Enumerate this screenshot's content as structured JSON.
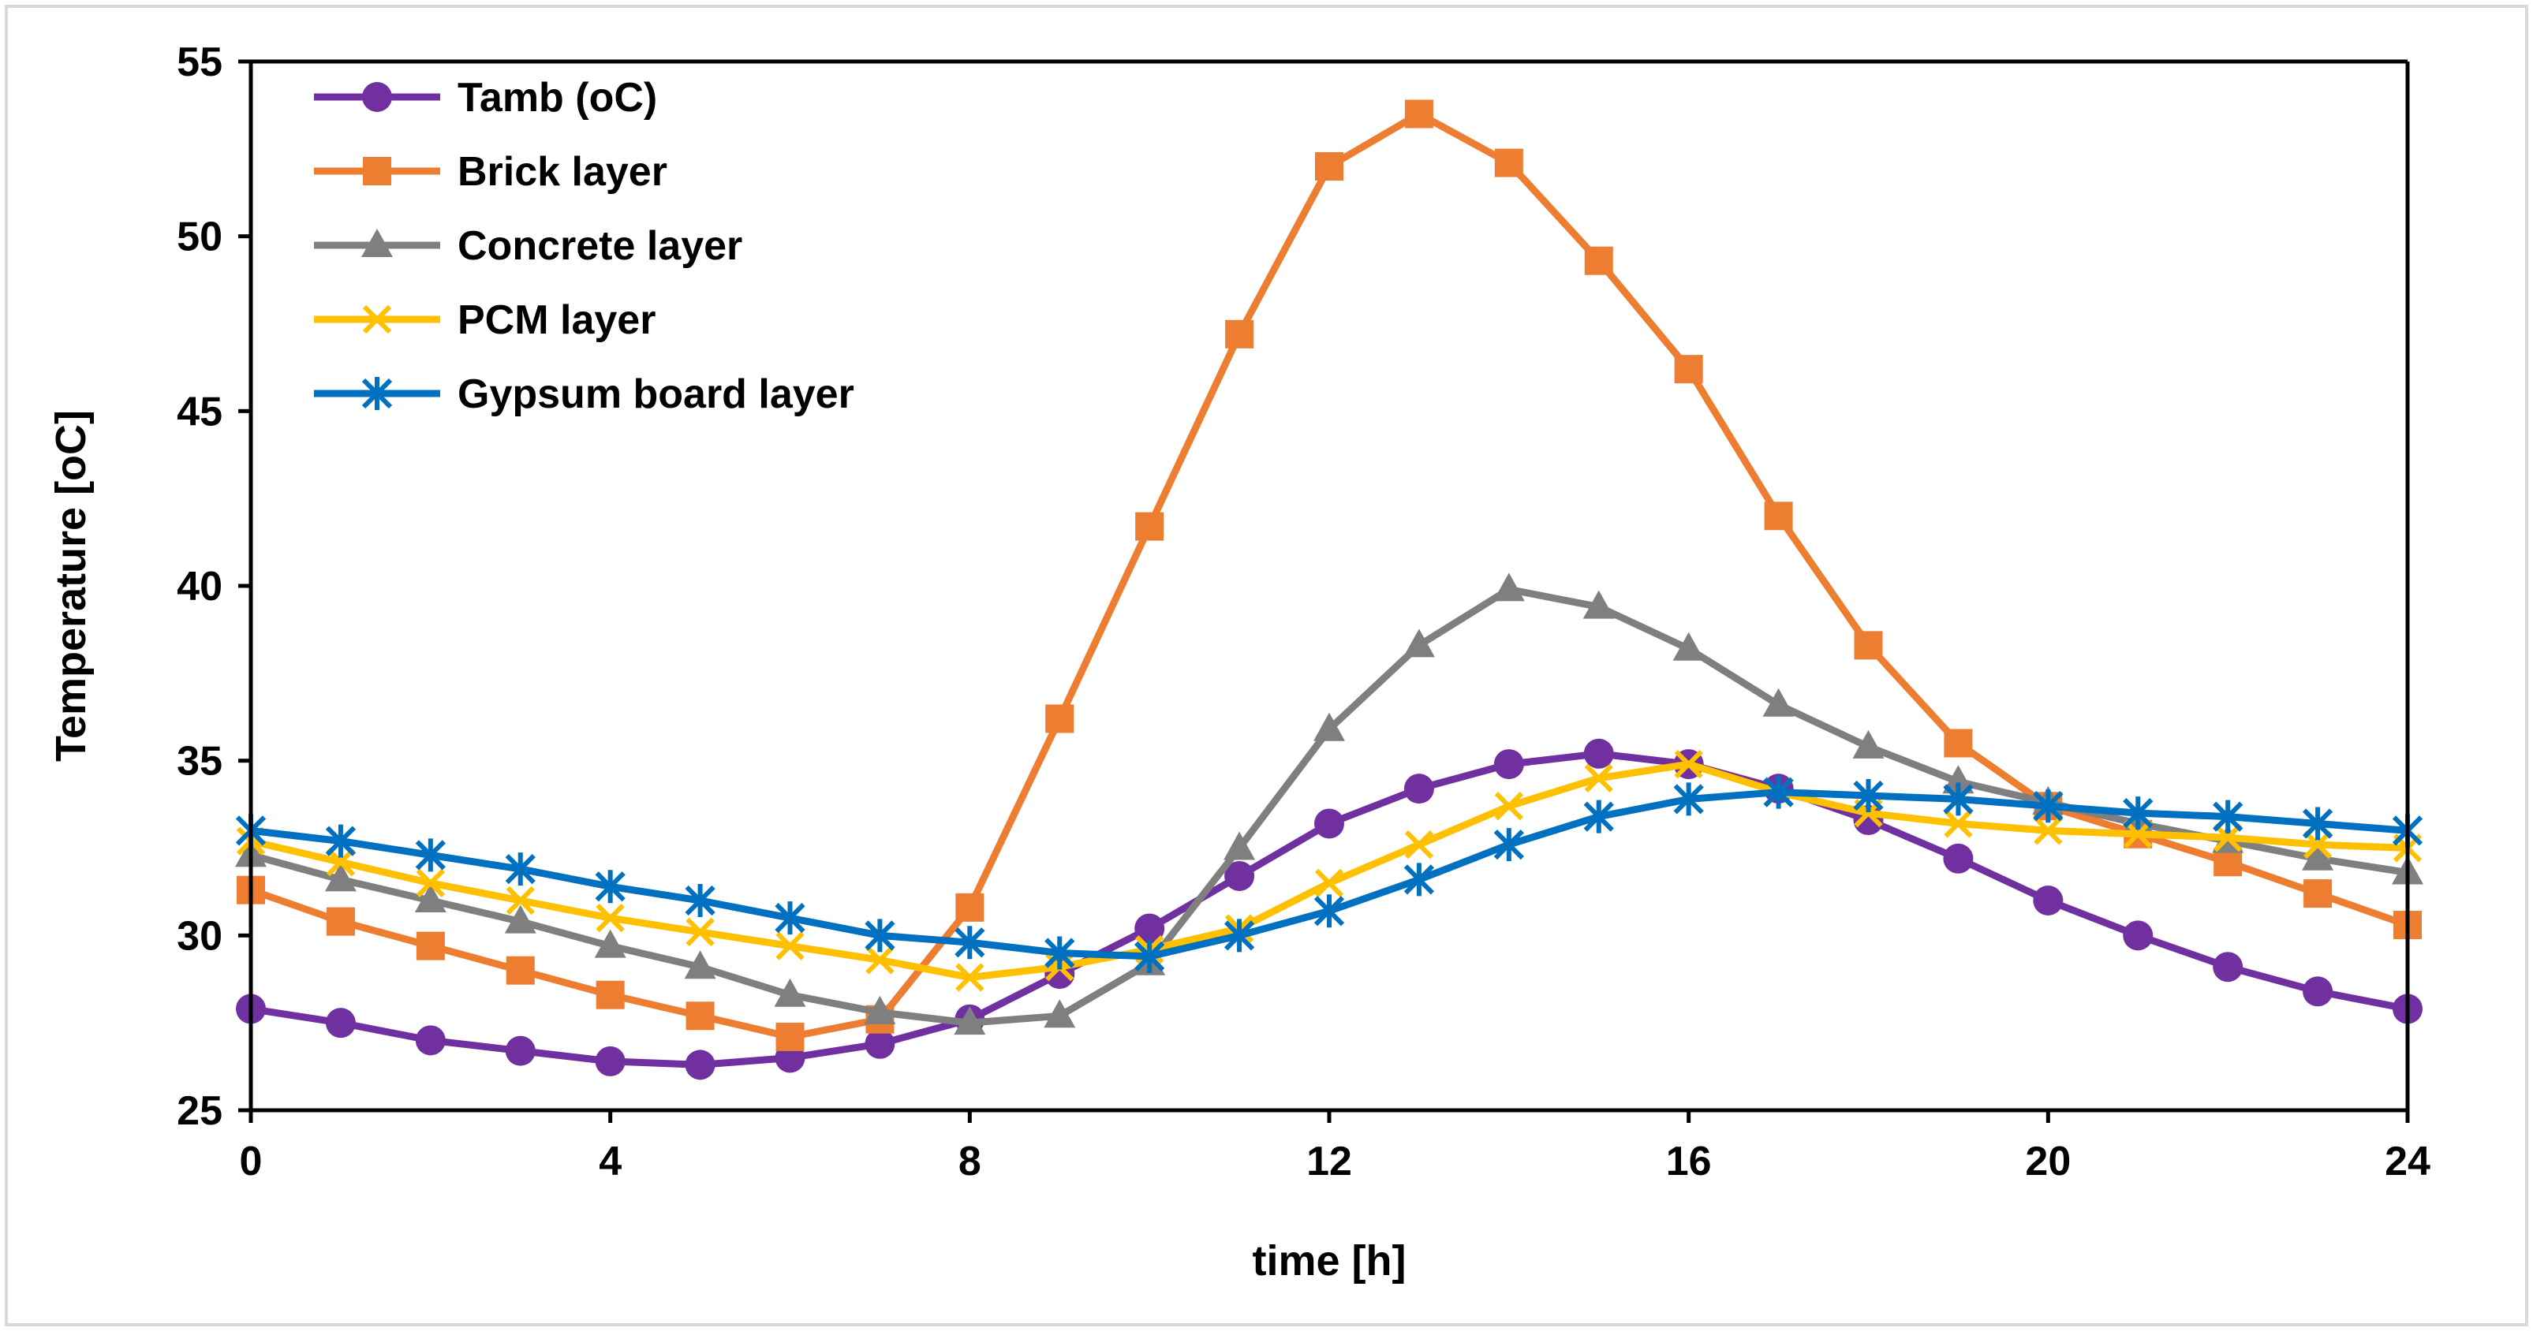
{
  "chart_data": {
    "type": "line",
    "title": "",
    "xlabel": "time [h]",
    "ylabel": "Temperature [oC]",
    "xlim": [
      0,
      24
    ],
    "ylim": [
      25,
      55
    ],
    "xticks": [
      0,
      4,
      8,
      12,
      16,
      20,
      24
    ],
    "yticks": [
      25,
      30,
      35,
      40,
      45,
      50,
      55
    ],
    "grid": false,
    "legend_position": "top-left",
    "x": [
      0,
      1,
      2,
      3,
      4,
      5,
      6,
      7,
      8,
      9,
      10,
      11,
      12,
      13,
      14,
      15,
      16,
      17,
      18,
      19,
      20,
      21,
      22,
      23,
      24
    ],
    "series": [
      {
        "name": "Tamb (oC)",
        "color": "#7030A0",
        "marker": "circle",
        "values": [
          27.9,
          27.5,
          27.0,
          26.7,
          26.4,
          26.3,
          26.5,
          26.9,
          27.6,
          28.9,
          30.2,
          31.7,
          33.2,
          34.2,
          34.9,
          35.2,
          34.9,
          34.2,
          33.3,
          32.2,
          31.0,
          30.0,
          29.1,
          28.4,
          27.9
        ]
      },
      {
        "name": "Brick layer",
        "color": "#ED7D31",
        "marker": "square",
        "values": [
          31.3,
          30.4,
          29.7,
          29.0,
          28.3,
          27.7,
          27.1,
          27.6,
          30.8,
          36.2,
          41.7,
          47.2,
          52.0,
          53.5,
          52.1,
          49.3,
          46.2,
          42.0,
          38.3,
          35.5,
          33.7,
          32.9,
          32.1,
          31.2,
          30.3
        ]
      },
      {
        "name": "Concrete layer",
        "color": "#7F7F7F",
        "marker": "triangle",
        "values": [
          32.3,
          31.6,
          31.0,
          30.4,
          29.7,
          29.1,
          28.3,
          27.8,
          27.5,
          27.7,
          29.2,
          32.5,
          35.9,
          38.3,
          39.9,
          39.4,
          38.2,
          36.6,
          35.4,
          34.4,
          33.8,
          33.2,
          32.7,
          32.2,
          31.8
        ]
      },
      {
        "name": "PCM layer",
        "color": "#FFC000",
        "marker": "x",
        "values": [
          32.7,
          32.1,
          31.5,
          31.0,
          30.5,
          30.1,
          29.7,
          29.3,
          28.8,
          29.1,
          29.6,
          30.2,
          31.5,
          32.6,
          33.7,
          34.5,
          34.9,
          34.1,
          33.5,
          33.2,
          33.0,
          32.9,
          32.8,
          32.6,
          32.5
        ]
      },
      {
        "name": "Gypsum board layer",
        "color": "#0070C0",
        "marker": "asterisk",
        "values": [
          33.0,
          32.7,
          32.3,
          31.9,
          31.4,
          31.0,
          30.5,
          30.0,
          29.8,
          29.5,
          29.4,
          30.0,
          30.7,
          31.6,
          32.6,
          33.4,
          33.9,
          34.1,
          34.0,
          33.9,
          33.7,
          33.5,
          33.4,
          33.2,
          33.0
        ]
      }
    ]
  }
}
